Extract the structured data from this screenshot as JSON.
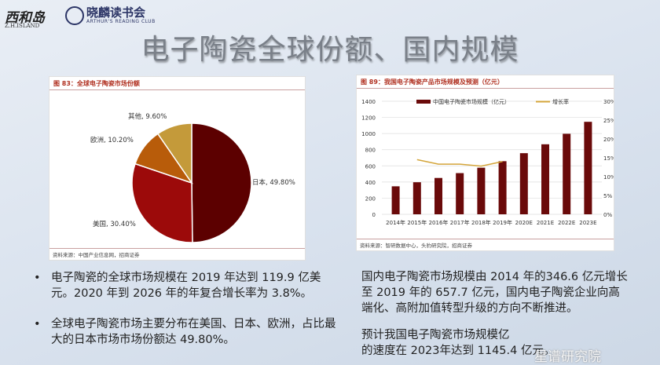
{
  "header": {
    "logo_left": "西和岛",
    "logo_left_sub": "Z.H.ISLAND",
    "logo_right": "晓麟读书会",
    "logo_right_sub": "ARTHUR'S READING CLUB",
    "title": "电子陶瓷全球份额、国内规模"
  },
  "colors": {
    "japan": "#5c0000",
    "usa": "#9c0a0a",
    "europe": "#b85c0a",
    "other": "#c49a3a",
    "bar": "#6a0a0a",
    "line": "#d4a53a",
    "figure_title": "#b03020"
  },
  "chart_data": [
    {
      "type": "pie",
      "title": "图 83：全球电子陶瓷市场份额",
      "source": "资料来源：中国产业信息网，招商证券",
      "slices": [
        {
          "label": "日本",
          "value": 49.8,
          "text": "日本, 49.80%"
        },
        {
          "label": "美国",
          "value": 30.4,
          "text": "美国, 30.40%"
        },
        {
          "label": "欧洲",
          "value": 10.2,
          "text": "欧洲, 10.20%"
        },
        {
          "label": "其他",
          "value": 9.6,
          "text": "其他, 9.60%"
        }
      ]
    },
    {
      "type": "bar",
      "title": "图 89：我国电子陶瓷产品市场规模及预测（亿元）",
      "source": "资料来源：智研数据中心，头豹研究院，招商证券",
      "categories": [
        "2014年",
        "2015年",
        "2016年",
        "2017年",
        "2018年",
        "2019年",
        "2020E",
        "2021E",
        "2022E",
        "2023E"
      ],
      "series": [
        {
          "name": "中国电子陶瓷市场规模（亿元）",
          "type": "bar",
          "axis": "left",
          "values": [
            346.6,
            397,
            450,
            510,
            577,
            657.7,
            757,
            867,
            997,
            1145.4
          ]
        },
        {
          "name": "增长率",
          "type": "line",
          "axis": "right",
          "values": [
            null,
            14.5,
            13.3,
            13.3,
            12.8,
            14.0,
            null,
            null,
            null,
            null
          ]
        }
      ],
      "ylim": [
        0,
        1400
      ],
      "yticks": [
        "0",
        "200",
        "400",
        "600",
        "800",
        "1000",
        "1200",
        "1400"
      ],
      "y2lim": [
        0,
        30
      ],
      "y2ticks": [
        "0%",
        "5%",
        "10%",
        "15%",
        "20%",
        "25%",
        "30%"
      ],
      "grid": true,
      "legend": "top"
    }
  ],
  "left_bullets": [
    "电子陶瓷的全球市场规模在 2019 年达到 119.9 亿美元。2020 年到 2026 年的年复合增长率为 3.8%。",
    "全球电子陶瓷市场主要分布在美国、日本、欧洲，占比最大的日本市场市场份额达 49.80%。"
  ],
  "right_paragraphs": [
    "国内电子陶瓷市场规模由 2014 年的346.6 亿元增长至 2019 年的 657.7 亿元，国内电子陶瓷企业向高端化、高附加值转型升级的方向不断推进。",
    "预计我国电子陶瓷市场规模亿",
    "的速度在 2023年达到 1145.4 亿元。"
  ],
  "watermark": "星谱研究院"
}
